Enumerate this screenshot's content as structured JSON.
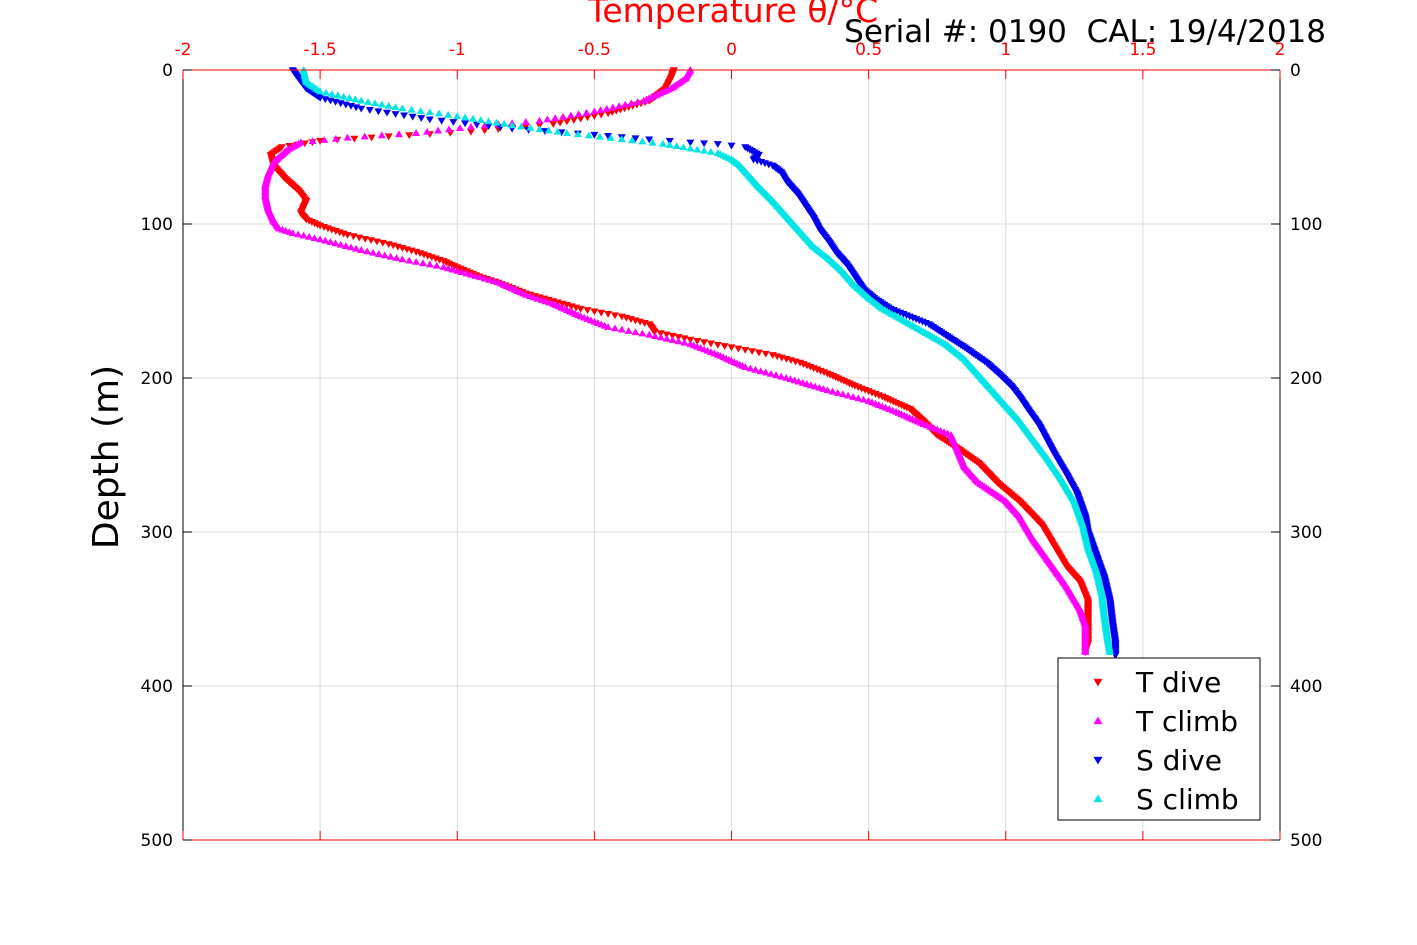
{
  "chart_data": {
    "type": "scatter",
    "title": "Temperature θ/°C",
    "annotation": "Serial #: 0190  CAL: 19/4/2018",
    "xlabel": "Temperature θ/°C",
    "ylabel": "Depth (m)",
    "xlim": [
      -2,
      2
    ],
    "ylim": [
      0,
      500
    ],
    "y_reversed": true,
    "x_ticks": [
      "-2",
      "-1.5",
      "-1",
      "-0.5",
      "0",
      "0.5",
      "1",
      "1.5",
      "2"
    ],
    "x_tick_values": [
      -2,
      -1.5,
      -1,
      -0.5,
      0,
      0.5,
      1,
      1.5,
      2
    ],
    "y_ticks": [
      "0",
      "100",
      "200",
      "300",
      "400",
      "500"
    ],
    "y_tick_values": [
      0,
      100,
      200,
      300,
      400,
      500
    ],
    "grid": true,
    "legend_position": "bottom-right",
    "colors": {
      "axis_top": "#ff0000",
      "axis_side": "#000000",
      "grid": "#dcdcdc"
    },
    "series": [
      {
        "name": "T dive",
        "color": "#ff0000",
        "marker": "triangle-down",
        "points": [
          [
            -0.21,
            0
          ],
          [
            -0.22,
            5
          ],
          [
            -0.24,
            12
          ],
          [
            -0.3,
            20
          ],
          [
            -0.45,
            28
          ],
          [
            -0.65,
            35
          ],
          [
            -0.95,
            40
          ],
          [
            -1.25,
            43
          ],
          [
            -1.5,
            46
          ],
          [
            -1.64,
            50
          ],
          [
            -1.68,
            55
          ],
          [
            -1.67,
            62
          ],
          [
            -1.63,
            70
          ],
          [
            -1.58,
            78
          ],
          [
            -1.55,
            85
          ],
          [
            -1.57,
            93
          ],
          [
            -1.55,
            97
          ],
          [
            -1.5,
            101
          ],
          [
            -1.4,
            107
          ],
          [
            -1.25,
            113
          ],
          [
            -1.15,
            118
          ],
          [
            -1.05,
            124
          ],
          [
            -1.0,
            128
          ],
          [
            -0.92,
            134
          ],
          [
            -0.85,
            138
          ],
          [
            -0.75,
            145
          ],
          [
            -0.65,
            150
          ],
          [
            -0.55,
            155
          ],
          [
            -0.4,
            160
          ],
          [
            -0.3,
            165
          ],
          [
            -0.28,
            170
          ],
          [
            -0.15,
            175
          ],
          [
            0.0,
            180
          ],
          [
            0.15,
            185
          ],
          [
            0.25,
            190
          ],
          [
            0.35,
            197
          ],
          [
            0.45,
            205
          ],
          [
            0.55,
            212
          ],
          [
            0.65,
            220
          ],
          [
            0.7,
            228
          ],
          [
            0.75,
            237
          ],
          [
            0.82,
            245
          ],
          [
            0.9,
            255
          ],
          [
            0.97,
            268
          ],
          [
            1.05,
            280
          ],
          [
            1.13,
            295
          ],
          [
            1.18,
            310
          ],
          [
            1.22,
            322
          ],
          [
            1.27,
            332
          ],
          [
            1.3,
            345
          ],
          [
            1.3,
            355
          ],
          [
            1.3,
            365
          ],
          [
            1.3,
            372
          ],
          [
            1.29,
            378
          ]
        ]
      },
      {
        "name": "T climb",
        "color": "#ff00ff",
        "marker": "triangle-up",
        "points": [
          [
            -0.15,
            0
          ],
          [
            -0.17,
            6
          ],
          [
            -0.22,
            12
          ],
          [
            -0.32,
            20
          ],
          [
            -0.5,
            27
          ],
          [
            -0.7,
            33
          ],
          [
            -0.95,
            37
          ],
          [
            -1.15,
            41
          ],
          [
            -1.4,
            44
          ],
          [
            -1.57,
            47
          ],
          [
            -1.62,
            52
          ],
          [
            -1.67,
            60
          ],
          [
            -1.69,
            68
          ],
          [
            -1.7,
            75
          ],
          [
            -1.7,
            82
          ],
          [
            -1.69,
            90
          ],
          [
            -1.67,
            98
          ],
          [
            -1.65,
            103
          ],
          [
            -1.6,
            106
          ],
          [
            -1.5,
            110
          ],
          [
            -1.35,
            117
          ],
          [
            -1.2,
            123
          ],
          [
            -1.05,
            128
          ],
          [
            -0.95,
            133
          ],
          [
            -0.85,
            138
          ],
          [
            -0.75,
            146
          ],
          [
            -0.65,
            152
          ],
          [
            -0.55,
            160
          ],
          [
            -0.45,
            167
          ],
          [
            -0.3,
            172
          ],
          [
            -0.15,
            178
          ],
          [
            -0.05,
            185
          ],
          [
            0.05,
            193
          ],
          [
            0.2,
            200
          ],
          [
            0.35,
            208
          ],
          [
            0.5,
            215
          ],
          [
            0.6,
            222
          ],
          [
            0.7,
            230
          ],
          [
            0.8,
            237
          ],
          [
            0.82,
            245
          ],
          [
            0.85,
            258
          ],
          [
            0.9,
            268
          ],
          [
            1.0,
            280
          ],
          [
            1.05,
            290
          ],
          [
            1.1,
            305
          ],
          [
            1.16,
            320
          ],
          [
            1.22,
            335
          ],
          [
            1.27,
            350
          ],
          [
            1.29,
            360
          ],
          [
            1.29,
            370
          ],
          [
            1.29,
            378
          ]
        ]
      },
      {
        "name": "S dive",
        "color": "#0000ee",
        "marker": "triangle-down",
        "points": [
          [
            -1.6,
            0
          ],
          [
            -1.58,
            5
          ],
          [
            -1.55,
            12
          ],
          [
            -1.5,
            18
          ],
          [
            -1.35,
            25
          ],
          [
            -1.1,
            32
          ],
          [
            -0.8,
            38
          ],
          [
            -0.5,
            42
          ],
          [
            -0.3,
            45
          ],
          [
            -0.15,
            47
          ],
          [
            -0.05,
            48
          ],
          [
            0.05,
            50
          ],
          [
            0.1,
            55
          ],
          [
            0.08,
            58
          ],
          [
            0.15,
            62
          ],
          [
            0.18,
            66
          ],
          [
            0.2,
            72
          ],
          [
            0.24,
            80
          ],
          [
            0.27,
            88
          ],
          [
            0.3,
            96
          ],
          [
            0.32,
            103
          ],
          [
            0.35,
            110
          ],
          [
            0.38,
            118
          ],
          [
            0.42,
            126
          ],
          [
            0.45,
            134
          ],
          [
            0.48,
            142
          ],
          [
            0.52,
            148
          ],
          [
            0.58,
            155
          ],
          [
            0.65,
            160
          ],
          [
            0.72,
            165
          ],
          [
            0.78,
            172
          ],
          [
            0.85,
            180
          ],
          [
            0.93,
            190
          ],
          [
            0.98,
            198
          ],
          [
            1.02,
            205
          ],
          [
            1.05,
            212
          ],
          [
            1.08,
            220
          ],
          [
            1.12,
            230
          ],
          [
            1.15,
            240
          ],
          [
            1.18,
            250
          ],
          [
            1.22,
            262
          ],
          [
            1.26,
            275
          ],
          [
            1.29,
            290
          ],
          [
            1.3,
            300
          ],
          [
            1.33,
            315
          ],
          [
            1.36,
            330
          ],
          [
            1.38,
            345
          ],
          [
            1.39,
            360
          ],
          [
            1.4,
            372
          ],
          [
            1.4,
            380
          ]
        ]
      },
      {
        "name": "S climb",
        "color": "#00e5e5",
        "marker": "triangle-up",
        "points": [
          [
            -1.56,
            0
          ],
          [
            -1.55,
            8
          ],
          [
            -1.5,
            14
          ],
          [
            -1.35,
            20
          ],
          [
            -1.2,
            25
          ],
          [
            -1.0,
            30
          ],
          [
            -0.8,
            36
          ],
          [
            -0.6,
            41
          ],
          [
            -0.4,
            45
          ],
          [
            -0.25,
            48
          ],
          [
            -0.15,
            51
          ],
          [
            -0.05,
            54
          ],
          [
            0.0,
            58
          ],
          [
            0.03,
            62
          ],
          [
            0.06,
            68
          ],
          [
            0.1,
            76
          ],
          [
            0.15,
            85
          ],
          [
            0.2,
            95
          ],
          [
            0.25,
            105
          ],
          [
            0.3,
            115
          ],
          [
            0.35,
            122
          ],
          [
            0.4,
            130
          ],
          [
            0.45,
            140
          ],
          [
            0.5,
            148
          ],
          [
            0.55,
            155
          ],
          [
            0.62,
            162
          ],
          [
            0.7,
            170
          ],
          [
            0.78,
            178
          ],
          [
            0.85,
            188
          ],
          [
            0.9,
            198
          ],
          [
            0.95,
            208
          ],
          [
            1.0,
            218
          ],
          [
            1.05,
            228
          ],
          [
            1.1,
            240
          ],
          [
            1.15,
            252
          ],
          [
            1.2,
            265
          ],
          [
            1.25,
            280
          ],
          [
            1.28,
            295
          ],
          [
            1.3,
            310
          ],
          [
            1.33,
            325
          ],
          [
            1.35,
            340
          ],
          [
            1.36,
            355
          ],
          [
            1.37,
            368
          ],
          [
            1.38,
            378
          ]
        ]
      }
    ]
  }
}
